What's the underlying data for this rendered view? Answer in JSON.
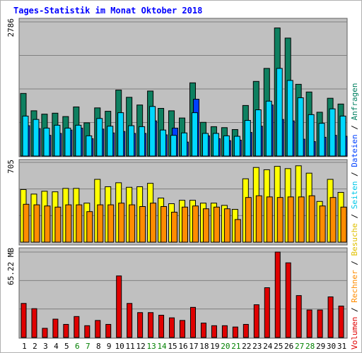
{
  "title": "Tages-Statistik im Monat Oktober 2018",
  "colors": {
    "background": "#c0c0c0",
    "grid": "#808080",
    "anfragen": "#0e8060",
    "seiten": "#00d8ff",
    "dateien": "#0040ff",
    "besuche": "#ffff00",
    "rechner": "#ff8c00",
    "volumen": "#e00000",
    "weekday": "#000000",
    "weekend": "#008000"
  },
  "right_legend_top": [
    {
      "text": "Anfragen",
      "color": "#008060"
    },
    {
      "text": "/",
      "color": "#000000"
    },
    {
      "text": "Dateien",
      "color": "#0040ff"
    },
    {
      "text": "/",
      "color": "#000000"
    },
    {
      "text": "Seiten",
      "color": "#00c8e8"
    },
    {
      "text": "/",
      "color": "#000000"
    },
    {
      "text": "Besuche",
      "color": "#e0c000"
    },
    {
      "text": "/",
      "color": "#000000"
    },
    {
      "text": "Rechner",
      "color": "#ff8c00"
    },
    {
      "text": "/",
      "color": "#000000"
    },
    {
      "text": "Volumen",
      "color": "#e00000"
    }
  ],
  "chart_data": [
    {
      "type": "bar",
      "panel": "hits",
      "y_label": "2786",
      "ylim": [
        0,
        2786
      ],
      "categories": [
        "1",
        "2",
        "3",
        "4",
        "5",
        "6",
        "7",
        "8",
        "9",
        "10",
        "11",
        "12",
        "13",
        "14",
        "15",
        "16",
        "17",
        "18",
        "19",
        "20",
        "21",
        "22",
        "23",
        "24",
        "25",
        "26",
        "27",
        "28",
        "29",
        "30",
        "31"
      ],
      "weekend_days": [
        "6",
        "7",
        "13",
        "14",
        "20",
        "21",
        "27",
        "28"
      ],
      "series": [
        {
          "name": "Anfragen",
          "values": [
            1300,
            940,
            870,
            890,
            820,
            1020,
            690,
            1000,
            930,
            1370,
            1220,
            1060,
            1350,
            990,
            940,
            790,
            1520,
            700,
            610,
            590,
            550,
            1050,
            1550,
            1820,
            2660,
            2450,
            1490,
            1330,
            910,
            1200,
            1080
          ]
        },
        {
          "name": "Dateien",
          "values": [
            630,
            570,
            430,
            470,
            540,
            580,
            360,
            560,
            480,
            510,
            470,
            470,
            730,
            440,
            580,
            290,
            1180,
            420,
            360,
            320,
            330,
            490,
            620,
            1060,
            760,
            730,
            350,
            300,
            390,
            430,
            410
          ]
        },
        {
          "name": "Seiten",
          "values": [
            830,
            760,
            580,
            640,
            580,
            640,
            420,
            780,
            620,
            900,
            630,
            610,
            1030,
            540,
            430,
            480,
            900,
            470,
            470,
            420,
            410,
            740,
            960,
            1140,
            1820,
            1570,
            1210,
            860,
            680,
            980,
            830
          ]
        }
      ]
    },
    {
      "type": "bar",
      "panel": "visits",
      "y_label": "705",
      "ylim": [
        0,
        705
      ],
      "categories": [
        "1",
        "2",
        "3",
        "4",
        "5",
        "6",
        "7",
        "8",
        "9",
        "10",
        "11",
        "12",
        "13",
        "14",
        "15",
        "16",
        "17",
        "18",
        "19",
        "20",
        "21",
        "22",
        "23",
        "24",
        "25",
        "26",
        "27",
        "28",
        "29",
        "30",
        "31"
      ],
      "series": [
        {
          "name": "Besuche",
          "values": [
            465,
            425,
            450,
            445,
            475,
            475,
            345,
            555,
            490,
            525,
            485,
            490,
            520,
            390,
            340,
            370,
            370,
            345,
            345,
            325,
            290,
            560,
            660,
            640,
            670,
            650,
            675,
            610,
            360,
            555,
            440
          ]
        },
        {
          "name": "Rechner",
          "values": [
            335,
            330,
            320,
            310,
            330,
            330,
            270,
            330,
            330,
            345,
            330,
            315,
            345,
            315,
            265,
            310,
            320,
            295,
            310,
            295,
            200,
            395,
            410,
            400,
            395,
            400,
            400,
            410,
            320,
            395,
            310
          ]
        }
      ]
    },
    {
      "type": "bar",
      "panel": "volume",
      "y_label": "65.22 MB",
      "ylim": [
        0,
        65.22
      ],
      "categories": [
        "1",
        "2",
        "3",
        "4",
        "5",
        "6",
        "7",
        "8",
        "9",
        "10",
        "11",
        "12",
        "13",
        "14",
        "15",
        "16",
        "17",
        "18",
        "19",
        "20",
        "21",
        "22",
        "23",
        "24",
        "25",
        "26",
        "27",
        "28",
        "29",
        "30",
        "31"
      ],
      "series": [
        {
          "name": "Volumen",
          "values": [
            26,
            22,
            7,
            14,
            10,
            16,
            9,
            13,
            10,
            47,
            26,
            19,
            19,
            17,
            15,
            13,
            23,
            11,
            9,
            9,
            8,
            10,
            25,
            38,
            65.22,
            57,
            32,
            21,
            21,
            31,
            24
          ]
        }
      ]
    }
  ]
}
